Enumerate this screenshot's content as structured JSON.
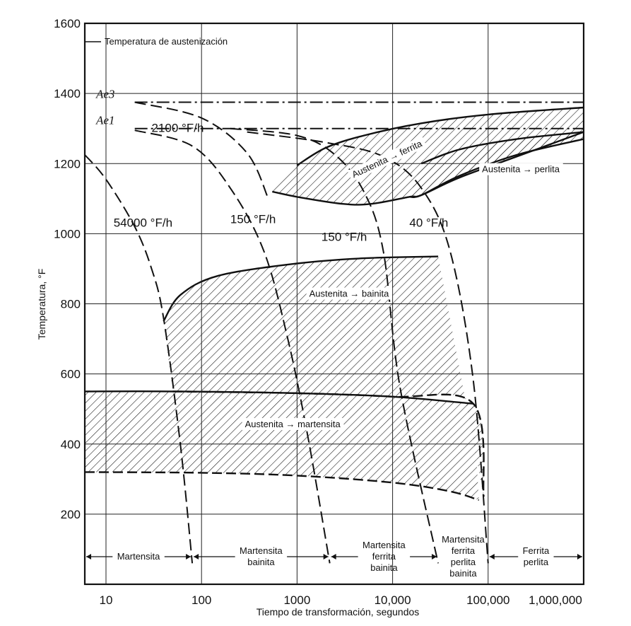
{
  "chart_data": {
    "type": "line",
    "title": "",
    "xlabel": "Tiempo de transformación, segundos",
    "ylabel": "Temperatura, °F",
    "xscale": "log",
    "xlim": [
      6,
      1000000
    ],
    "ylim": [
      0,
      1600
    ],
    "grid": true,
    "x_tick_labels": [
      "10",
      "100",
      "1000",
      "10,000",
      "100,000",
      "1,000,000"
    ],
    "x_tick_values": [
      10,
      100,
      1000,
      10000,
      100000,
      1000000
    ],
    "y_tick_labels": [
      "200",
      "400",
      "600",
      "800",
      "1000",
      "1200",
      "1400",
      "1600"
    ],
    "y_tick_values": [
      200,
      400,
      600,
      800,
      1000,
      1200,
      1400,
      1600
    ],
    "reference_lines": [
      {
        "label": "Ae3",
        "y": 1375
      },
      {
        "label": "Ae1",
        "y": 1300
      }
    ],
    "annotations": {
      "austenitizing": "Temperatura de austenización"
    },
    "regions": [
      {
        "label": "Austenita → ferrita",
        "upper": [
          [
            1000,
            1195
          ],
          [
            2000,
            1245
          ],
          [
            5000,
            1280
          ],
          [
            20000,
            1315
          ],
          [
            100000,
            1340
          ],
          [
            1000000,
            1360
          ]
        ],
        "lower": [
          [
            550,
            1120
          ],
          [
            1000,
            1105
          ],
          [
            3000,
            1085
          ],
          [
            6000,
            1085
          ],
          [
            15000,
            1105
          ],
          [
            20000,
            1110
          ],
          [
            50000,
            1160
          ],
          [
            200000,
            1220
          ],
          [
            1000000,
            1290
          ]
        ]
      },
      {
        "label": "Austenita → perlita",
        "upper": [
          [
            20000,
            1200
          ],
          [
            50000,
            1240
          ],
          [
            200000,
            1270
          ],
          [
            1000000,
            1290
          ]
        ],
        "lower": [
          [
            15000,
            1105
          ],
          [
            20000,
            1110
          ],
          [
            50000,
            1165
          ],
          [
            200000,
            1225
          ],
          [
            1000000,
            1270
          ]
        ]
      },
      {
        "label": "Austenita → bainita",
        "upper": [
          [
            40,
            750
          ],
          [
            60,
            825
          ],
          [
            150,
            880
          ],
          [
            1000,
            915
          ],
          [
            5000,
            930
          ],
          [
            30000,
            935
          ]
        ],
        "lower": [
          [
            50,
            550
          ],
          [
            1000,
            545
          ],
          [
            10000,
            535
          ],
          [
            70000,
            515
          ],
          [
            90000,
            250
          ]
        ]
      },
      {
        "label": "Austenita → martensita",
        "upper": [
          [
            6,
            550
          ],
          [
            50,
            550
          ],
          [
            1000,
            545
          ],
          [
            10000,
            535
          ],
          [
            70000,
            515
          ]
        ],
        "lower": [
          [
            6,
            320
          ],
          [
            100,
            318
          ],
          [
            1000,
            310
          ],
          [
            10000,
            290
          ],
          [
            40000,
            265
          ],
          [
            80000,
            240
          ]
        ]
      }
    ],
    "series": [
      {
        "name": "54000 °F/h",
        "points": [
          [
            6,
            1225
          ],
          [
            10,
            1155
          ],
          [
            20,
            1020
          ],
          [
            30,
            900
          ],
          [
            40,
            760
          ],
          [
            60,
            400
          ],
          [
            80,
            60
          ]
        ]
      },
      {
        "name": "2100 °F/h",
        "points": [
          [
            20,
            1295
          ],
          [
            80,
            1250
          ],
          [
            200,
            1130
          ],
          [
            450,
            950
          ],
          [
            800,
            700
          ],
          [
            1300,
            420
          ],
          [
            2200,
            60
          ]
        ]
      },
      {
        "name": "150 °F/h",
        "points": [
          [
            20,
            1375
          ],
          [
            100,
            1330
          ],
          [
            300,
            1230
          ],
          [
            500,
            1100
          ]
        ]
      },
      {
        "name": "150 °F/h",
        "points": [
          [
            200,
            1300
          ],
          [
            1000,
            1280
          ],
          [
            2500,
            1225
          ],
          [
            5000,
            1120
          ],
          [
            8000,
            950
          ],
          [
            12000,
            560
          ],
          [
            30000,
            60
          ]
        ]
      },
      {
        "name": "40 °F/h",
        "points": [
          [
            300,
            1290
          ],
          [
            2000,
            1260
          ],
          [
            8000,
            1220
          ],
          [
            20000,
            1130
          ],
          [
            40000,
            950
          ],
          [
            70000,
            580
          ],
          [
            100000,
            60
          ]
        ]
      }
    ],
    "bottom_regions": [
      {
        "label": "Martensita",
        "x_from": 6,
        "x_to": 80
      },
      {
        "label": "Martensita\nbainita",
        "x_from": 80,
        "x_to": 2200
      },
      {
        "label": "Martensita\nferrita\nbainita",
        "x_from": 2200,
        "x_to": 30000
      },
      {
        "label": "Martensita\nferrita\nperlita\nbainita",
        "x_from": 30000,
        "x_to": 100000
      },
      {
        "label": "Ferrita\nperlita",
        "x_from": 100000,
        "x_to": 1000000
      }
    ]
  }
}
